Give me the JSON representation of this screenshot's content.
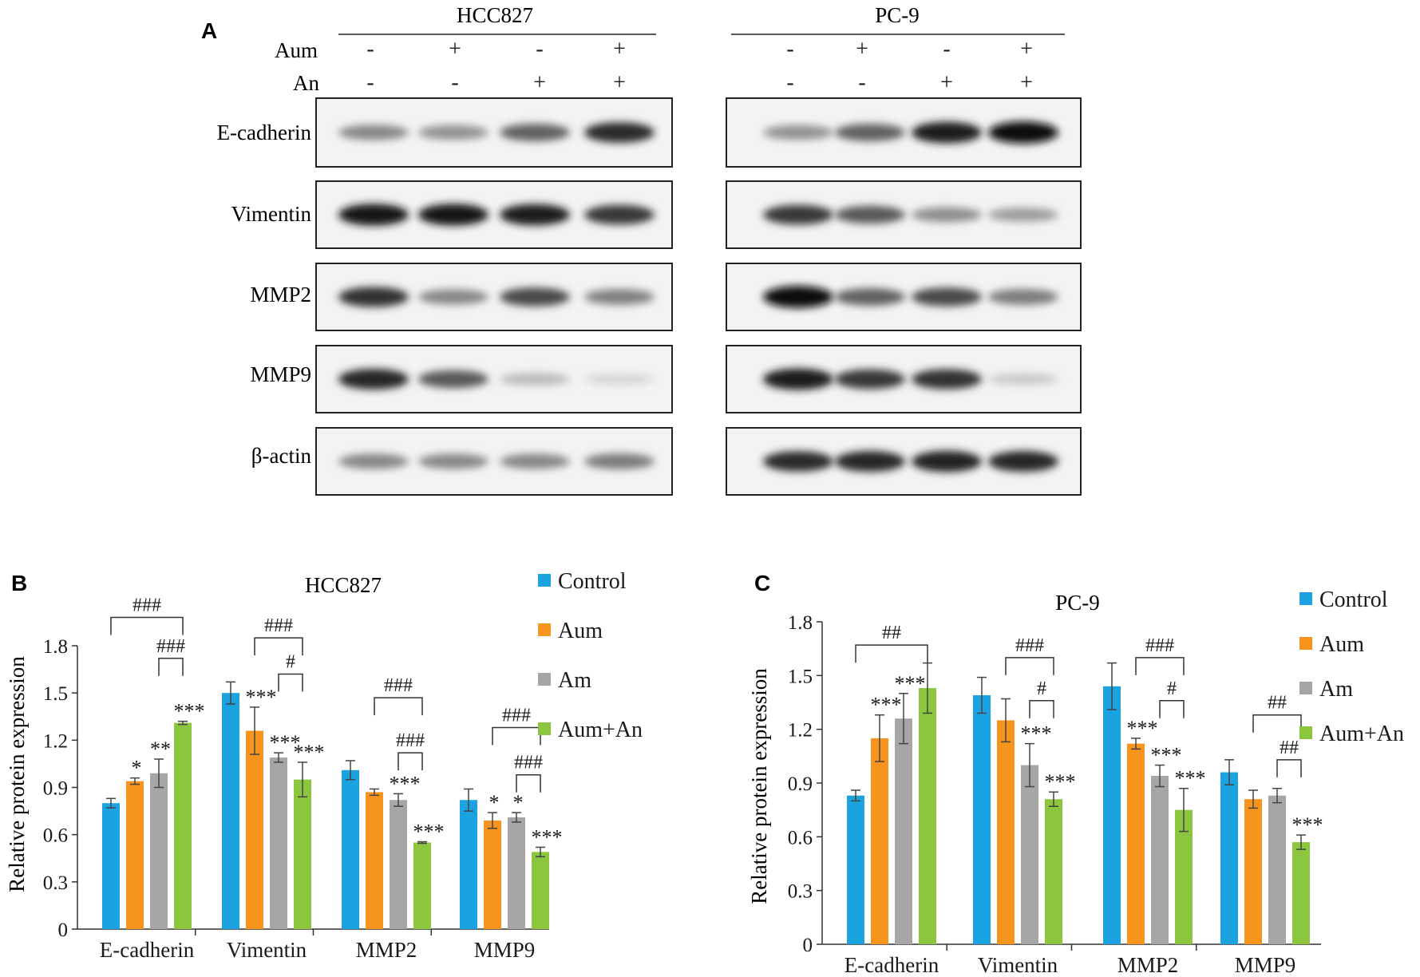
{
  "panel_a": {
    "letter": "A",
    "cell_lines": [
      "HCC827",
      "PC-9"
    ],
    "treatments": [
      {
        "name": "Aum",
        "values": [
          "-",
          "+",
          "-",
          "+"
        ]
      },
      {
        "name": "An",
        "values": [
          "-",
          "-",
          "+",
          "+"
        ]
      }
    ],
    "proteins": [
      "E-cadherin",
      "Vimentin",
      "MMP2",
      "MMP9",
      "β-actin"
    ],
    "band_intensity": {
      "HCC827": {
        "E-cadherin": [
          0.45,
          0.4,
          0.62,
          0.85
        ],
        "Vimentin": [
          0.95,
          0.95,
          0.92,
          0.8
        ],
        "MMP2": [
          0.82,
          0.45,
          0.72,
          0.48
        ],
        "MMP9": [
          0.88,
          0.65,
          0.22,
          0.1
        ],
        "β-actin": [
          0.45,
          0.45,
          0.45,
          0.5
        ]
      },
      "PC-9": {
        "E-cadherin": [
          0.4,
          0.62,
          0.92,
          0.98
        ],
        "Vimentin": [
          0.8,
          0.65,
          0.42,
          0.35
        ],
        "MMP2": [
          0.98,
          0.62,
          0.72,
          0.5
        ],
        "MMP9": [
          0.92,
          0.8,
          0.82,
          0.15
        ],
        "β-actin": [
          0.85,
          0.88,
          0.9,
          0.88
        ]
      }
    }
  },
  "chart_data": [
    {
      "panel": "B",
      "type": "bar",
      "title": "HCC827",
      "ylabel": "Relative protein expression",
      "ylim": [
        0,
        1.8
      ],
      "yticks": [
        "0",
        "0.3",
        "0.6",
        "0.9",
        "1.2",
        "1.5",
        "1.8"
      ],
      "categories": [
        "E-cadherin",
        "Vimentin",
        "MMP2",
        "MMP9"
      ],
      "series": [
        {
          "name": "Control",
          "color": "#1aa3e0",
          "values": [
            0.8,
            1.5,
            1.01,
            0.82
          ],
          "err": [
            0.03,
            0.07,
            0.06,
            0.07
          ],
          "marks": [
            "",
            "",
            "",
            ""
          ]
        },
        {
          "name": "Aum",
          "color": "#f7941d",
          "values": [
            0.94,
            1.26,
            0.87,
            0.69
          ],
          "err": [
            0.02,
            0.15,
            0.02,
            0.05
          ],
          "marks": [
            "*",
            "***",
            "",
            "*"
          ]
        },
        {
          "name": "Am",
          "color": "#a6a6a6",
          "values": [
            0.99,
            1.09,
            0.82,
            0.71
          ],
          "err": [
            0.09,
            0.03,
            0.04,
            0.03
          ],
          "marks": [
            "**",
            "***",
            "***",
            "*"
          ]
        },
        {
          "name": "Aum+An",
          "color": "#8cc63f",
          "values": [
            1.31,
            0.95,
            0.55,
            0.49
          ],
          "err": [
            0.01,
            0.11,
            0.005,
            0.03
          ],
          "marks": [
            "***",
            "***",
            "***",
            "***"
          ]
        }
      ],
      "brackets": [
        {
          "cat": 0,
          "from": 0,
          "to": 3,
          "label": "###",
          "y": 1.98
        },
        {
          "cat": 0,
          "from": 2,
          "to": 3,
          "label": "###",
          "y": 1.72
        },
        {
          "cat": 1,
          "from": 1,
          "to": 3,
          "label": "###",
          "y": 1.85
        },
        {
          "cat": 1,
          "from": 2,
          "to": 3,
          "label": "#",
          "y": 1.62
        },
        {
          "cat": 2,
          "from": 1,
          "to": 3,
          "label": "###",
          "y": 1.47
        },
        {
          "cat": 2,
          "from": 2,
          "to": 3,
          "label": "###",
          "y": 1.12
        },
        {
          "cat": 3,
          "from": 1,
          "to": 3,
          "label": "###",
          "y": 1.28
        },
        {
          "cat": 3,
          "from": 2,
          "to": 3,
          "label": "###",
          "y": 0.98
        }
      ]
    },
    {
      "panel": "C",
      "type": "bar",
      "title": "PC-9",
      "ylabel": "Relative protein expression",
      "ylim": [
        0,
        1.8
      ],
      "yticks": [
        "0",
        "0.3",
        "0.6",
        "0.9",
        "1.2",
        "1.5",
        "1.8"
      ],
      "categories": [
        "E-cadherin",
        "Vimentin",
        "MMP2",
        "MMP9"
      ],
      "series": [
        {
          "name": "Control",
          "color": "#1aa3e0",
          "values": [
            0.83,
            1.39,
            1.44,
            0.96
          ],
          "err": [
            0.03,
            0.1,
            0.13,
            0.07
          ],
          "marks": [
            "",
            "",
            "",
            ""
          ]
        },
        {
          "name": "Aum",
          "color": "#f7941d",
          "values": [
            1.15,
            1.25,
            1.12,
            0.81
          ],
          "err": [
            0.13,
            0.12,
            0.03,
            0.05
          ],
          "marks": [
            "***",
            "",
            "***",
            ""
          ]
        },
        {
          "name": "Am",
          "color": "#a6a6a6",
          "values": [
            1.26,
            1.0,
            0.94,
            0.83
          ],
          "err": [
            0.14,
            0.12,
            0.06,
            0.04
          ],
          "marks": [
            "***",
            "***",
            "***",
            ""
          ]
        },
        {
          "name": "Aum+An",
          "color": "#8cc63f",
          "values": [
            1.43,
            0.81,
            0.75,
            0.57
          ],
          "err": [
            0.14,
            0.04,
            0.12,
            0.04
          ],
          "marks": [
            "",
            "***",
            "***",
            "***"
          ]
        }
      ],
      "brackets": [
        {
          "cat": 0,
          "from": 0,
          "to": 3,
          "label": "##",
          "y": 1.67
        },
        {
          "cat": 1,
          "from": 1,
          "to": 3,
          "label": "###",
          "y": 1.6
        },
        {
          "cat": 1,
          "from": 2,
          "to": 3,
          "label": "#",
          "y": 1.36
        },
        {
          "cat": 2,
          "from": 1,
          "to": 3,
          "label": "###",
          "y": 1.6
        },
        {
          "cat": 2,
          "from": 2,
          "to": 3,
          "label": "#",
          "y": 1.36
        },
        {
          "cat": 3,
          "from": 1,
          "to": 3,
          "label": "##",
          "y": 1.28
        },
        {
          "cat": 3,
          "from": 2,
          "to": 3,
          "label": "##",
          "y": 1.03
        }
      ]
    }
  ],
  "legend": [
    {
      "label": "Control",
      "color": "#1aa3e0"
    },
    {
      "label": "Aum",
      "color": "#f7941d"
    },
    {
      "label": "Am",
      "color": "#a6a6a6"
    },
    {
      "label": "Aum+An",
      "color": "#8cc63f"
    }
  ]
}
